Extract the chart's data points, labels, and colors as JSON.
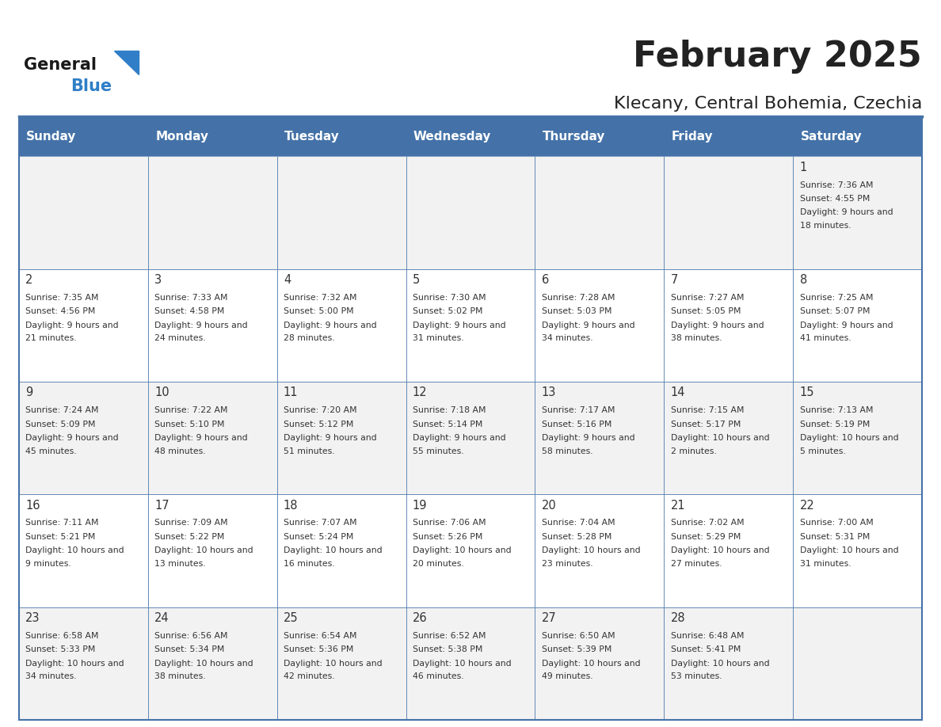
{
  "title": "February 2025",
  "subtitle": "Klecany, Central Bohemia, Czechia",
  "header_bg": "#4472a8",
  "header_text": "#ffffff",
  "cell_bg_odd": "#f2f2f2",
  "cell_bg_even": "#ffffff",
  "border_color": "#4472a8",
  "day_headers": [
    "Sunday",
    "Monday",
    "Tuesday",
    "Wednesday",
    "Thursday",
    "Friday",
    "Saturday"
  ],
  "title_color": "#222222",
  "subtitle_color": "#222222",
  "logo_general_color": "#1a1a1a",
  "logo_blue_color": "#2f7ec7",
  "logo_triangle_color": "#2f7ec7",
  "text_color": "#333333",
  "days": [
    {
      "day": 1,
      "col": 6,
      "row": 0,
      "sunrise": "7:36 AM",
      "sunset": "4:55 PM",
      "daylight": "9 hours and 18 minutes."
    },
    {
      "day": 2,
      "col": 0,
      "row": 1,
      "sunrise": "7:35 AM",
      "sunset": "4:56 PM",
      "daylight": "9 hours and 21 minutes."
    },
    {
      "day": 3,
      "col": 1,
      "row": 1,
      "sunrise": "7:33 AM",
      "sunset": "4:58 PM",
      "daylight": "9 hours and 24 minutes."
    },
    {
      "day": 4,
      "col": 2,
      "row": 1,
      "sunrise": "7:32 AM",
      "sunset": "5:00 PM",
      "daylight": "9 hours and 28 minutes."
    },
    {
      "day": 5,
      "col": 3,
      "row": 1,
      "sunrise": "7:30 AM",
      "sunset": "5:02 PM",
      "daylight": "9 hours and 31 minutes."
    },
    {
      "day": 6,
      "col": 4,
      "row": 1,
      "sunrise": "7:28 AM",
      "sunset": "5:03 PM",
      "daylight": "9 hours and 34 minutes."
    },
    {
      "day": 7,
      "col": 5,
      "row": 1,
      "sunrise": "7:27 AM",
      "sunset": "5:05 PM",
      "daylight": "9 hours and 38 minutes."
    },
    {
      "day": 8,
      "col": 6,
      "row": 1,
      "sunrise": "7:25 AM",
      "sunset": "5:07 PM",
      "daylight": "9 hours and 41 minutes."
    },
    {
      "day": 9,
      "col": 0,
      "row": 2,
      "sunrise": "7:24 AM",
      "sunset": "5:09 PM",
      "daylight": "9 hours and 45 minutes."
    },
    {
      "day": 10,
      "col": 1,
      "row": 2,
      "sunrise": "7:22 AM",
      "sunset": "5:10 PM",
      "daylight": "9 hours and 48 minutes."
    },
    {
      "day": 11,
      "col": 2,
      "row": 2,
      "sunrise": "7:20 AM",
      "sunset": "5:12 PM",
      "daylight": "9 hours and 51 minutes."
    },
    {
      "day": 12,
      "col": 3,
      "row": 2,
      "sunrise": "7:18 AM",
      "sunset": "5:14 PM",
      "daylight": "9 hours and 55 minutes."
    },
    {
      "day": 13,
      "col": 4,
      "row": 2,
      "sunrise": "7:17 AM",
      "sunset": "5:16 PM",
      "daylight": "9 hours and 58 minutes."
    },
    {
      "day": 14,
      "col": 5,
      "row": 2,
      "sunrise": "7:15 AM",
      "sunset": "5:17 PM",
      "daylight": "10 hours and 2 minutes."
    },
    {
      "day": 15,
      "col": 6,
      "row": 2,
      "sunrise": "7:13 AM",
      "sunset": "5:19 PM",
      "daylight": "10 hours and 5 minutes."
    },
    {
      "day": 16,
      "col": 0,
      "row": 3,
      "sunrise": "7:11 AM",
      "sunset": "5:21 PM",
      "daylight": "10 hours and 9 minutes."
    },
    {
      "day": 17,
      "col": 1,
      "row": 3,
      "sunrise": "7:09 AM",
      "sunset": "5:22 PM",
      "daylight": "10 hours and 13 minutes."
    },
    {
      "day": 18,
      "col": 2,
      "row": 3,
      "sunrise": "7:07 AM",
      "sunset": "5:24 PM",
      "daylight": "10 hours and 16 minutes."
    },
    {
      "day": 19,
      "col": 3,
      "row": 3,
      "sunrise": "7:06 AM",
      "sunset": "5:26 PM",
      "daylight": "10 hours and 20 minutes."
    },
    {
      "day": 20,
      "col": 4,
      "row": 3,
      "sunrise": "7:04 AM",
      "sunset": "5:28 PM",
      "daylight": "10 hours and 23 minutes."
    },
    {
      "day": 21,
      "col": 5,
      "row": 3,
      "sunrise": "7:02 AM",
      "sunset": "5:29 PM",
      "daylight": "10 hours and 27 minutes."
    },
    {
      "day": 22,
      "col": 6,
      "row": 3,
      "sunrise": "7:00 AM",
      "sunset": "5:31 PM",
      "daylight": "10 hours and 31 minutes."
    },
    {
      "day": 23,
      "col": 0,
      "row": 4,
      "sunrise": "6:58 AM",
      "sunset": "5:33 PM",
      "daylight": "10 hours and 34 minutes."
    },
    {
      "day": 24,
      "col": 1,
      "row": 4,
      "sunrise": "6:56 AM",
      "sunset": "5:34 PM",
      "daylight": "10 hours and 38 minutes."
    },
    {
      "day": 25,
      "col": 2,
      "row": 4,
      "sunrise": "6:54 AM",
      "sunset": "5:36 PM",
      "daylight": "10 hours and 42 minutes."
    },
    {
      "day": 26,
      "col": 3,
      "row": 4,
      "sunrise": "6:52 AM",
      "sunset": "5:38 PM",
      "daylight": "10 hours and 46 minutes."
    },
    {
      "day": 27,
      "col": 4,
      "row": 4,
      "sunrise": "6:50 AM",
      "sunset": "5:39 PM",
      "daylight": "10 hours and 49 minutes."
    },
    {
      "day": 28,
      "col": 5,
      "row": 4,
      "sunrise": "6:48 AM",
      "sunset": "5:41 PM",
      "daylight": "10 hours and 53 minutes."
    }
  ]
}
